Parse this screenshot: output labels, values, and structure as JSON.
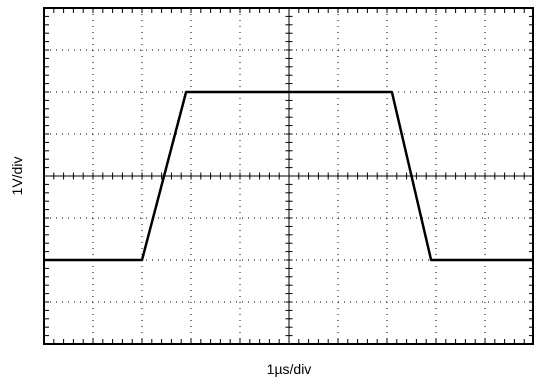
{
  "chart_data": {
    "type": "line",
    "title": "",
    "xlabel": "1µs/div",
    "ylabel": "1V/div",
    "grid": true,
    "xlim": [
      0,
      10
    ],
    "ylim": [
      -4,
      4
    ],
    "x_divisions": 10,
    "y_divisions": 8,
    "minor_ticks_per_division": 5,
    "series": [
      {
        "x": [
          0,
          2.0,
          2.9,
          7.1,
          7.9,
          10
        ],
        "y": [
          -2,
          -2,
          2,
          2,
          -2,
          -2
        ]
      }
    ],
    "colors": {
      "trace": "#000000",
      "grid": "#000000",
      "background": "#ffffff"
    }
  }
}
